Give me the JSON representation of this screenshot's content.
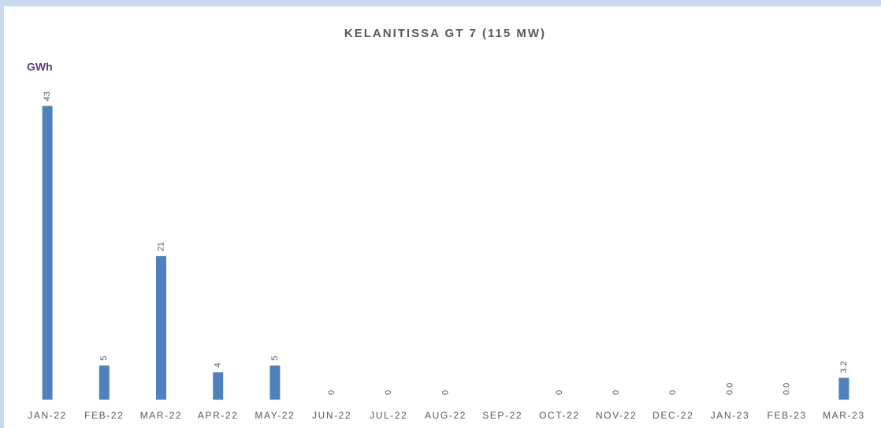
{
  "chart_data": {
    "type": "bar",
    "title": "KELANITISSA GT 7 (115 MW)",
    "y_label": "GWh",
    "categories": [
      "JAN-22",
      "FEB-22",
      "MAR-22",
      "APR-22",
      "MAY-22",
      "JUN-22",
      "JUL-22",
      "AUG-22",
      "SEP-22",
      "OCT-22",
      "NOV-22",
      "DEC-22",
      "JAN-23",
      "FEB-23",
      "MAR-23"
    ],
    "values": [
      43,
      5,
      21,
      4,
      5,
      0,
      0,
      0,
      null,
      0,
      0,
      0,
      0,
      0,
      3.2
    ],
    "value_labels": [
      "43",
      "5",
      "21",
      "4",
      "5",
      "0",
      "0",
      "0",
      null,
      "0",
      "0",
      "0",
      "0.0",
      "0.0",
      "3.2"
    ],
    "color": "#4f81bd",
    "ylim": [
      0,
      45
    ]
  }
}
